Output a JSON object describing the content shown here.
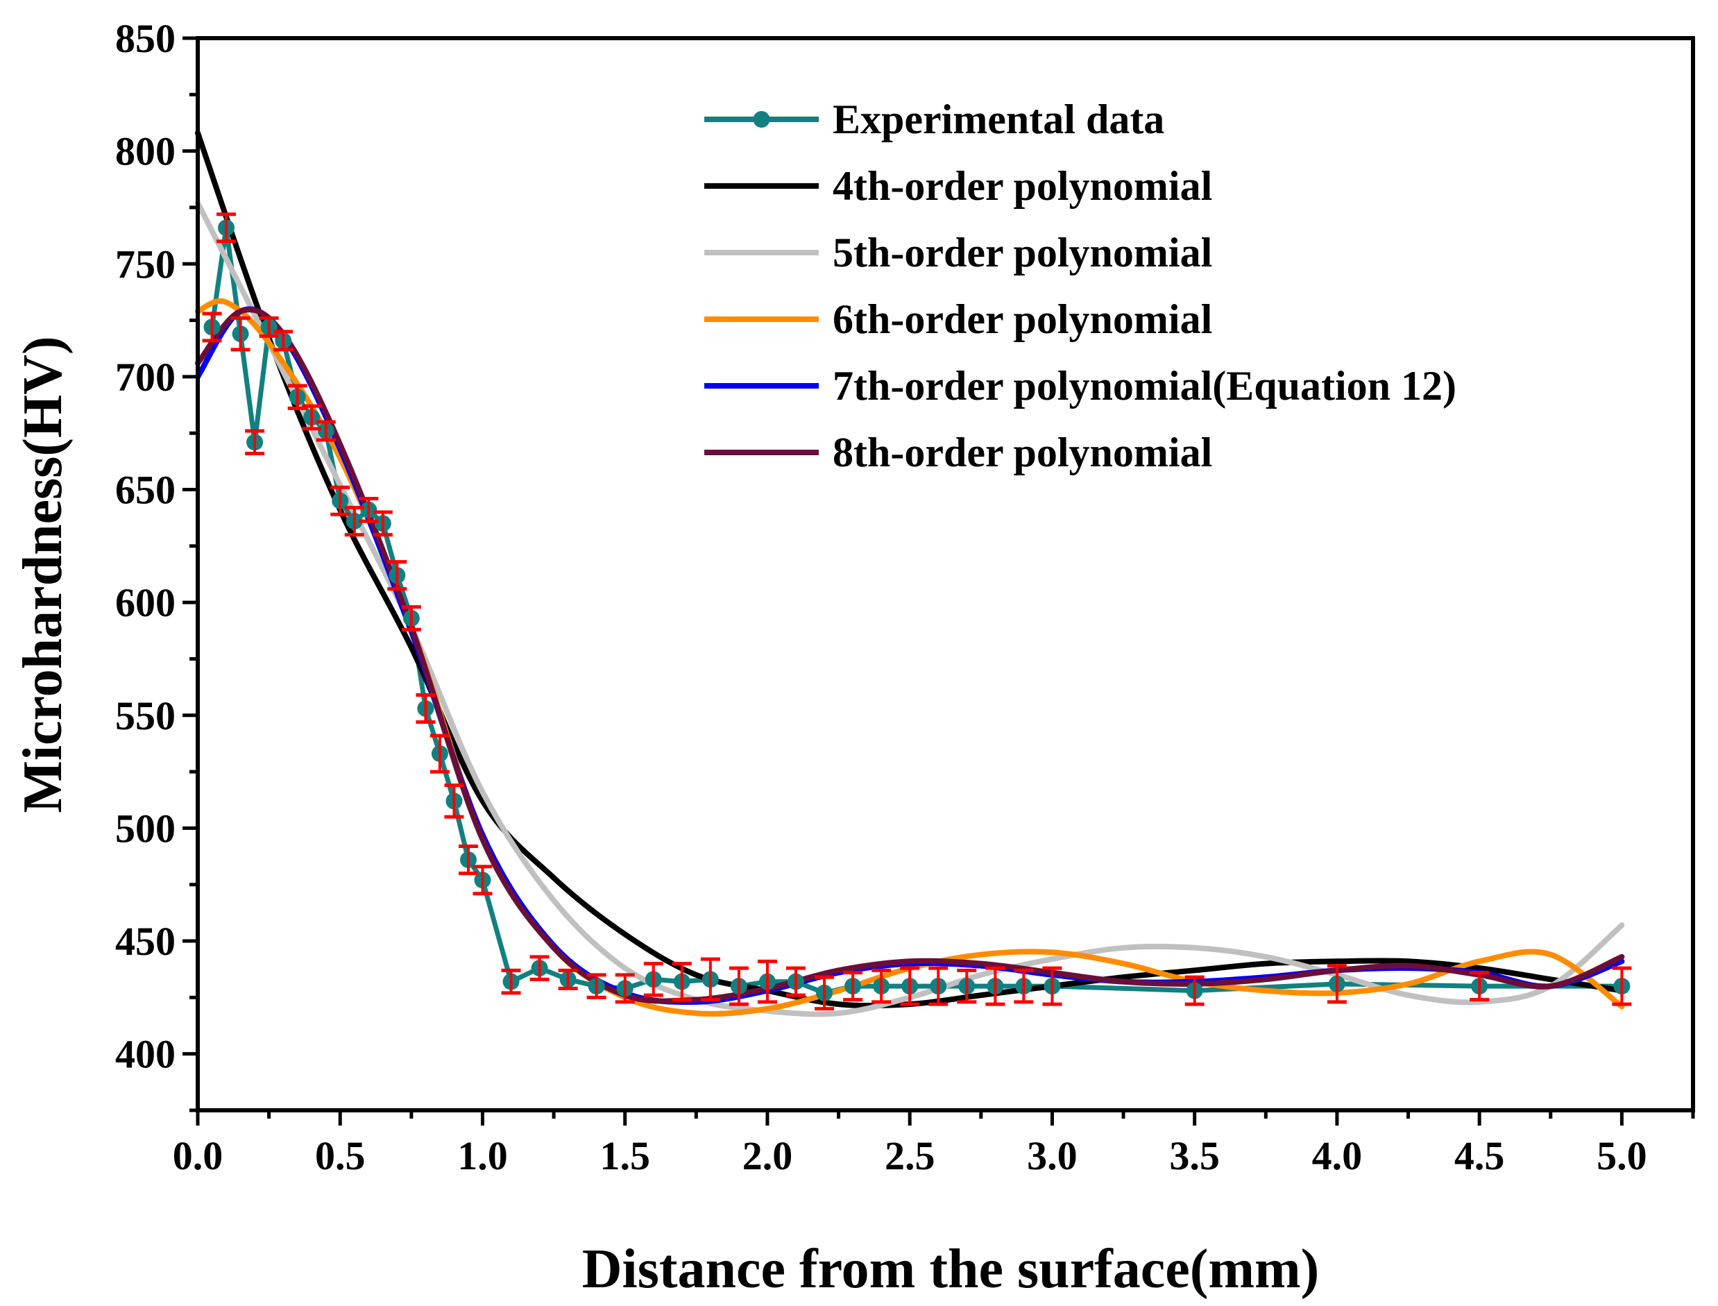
{
  "chart_data": {
    "type": "line",
    "title": "",
    "xlabel": "Distance from the surface(mm)",
    "ylabel": "Microhardness(HV)",
    "xlim": [
      0,
      5.25
    ],
    "ylim": [
      375,
      850
    ],
    "xticks": [
      0.0,
      0.5,
      1.0,
      1.5,
      2.0,
      2.5,
      3.0,
      3.5,
      4.0,
      4.5,
      5.0
    ],
    "xtick_labels": [
      "0.0",
      "0.5",
      "1.0",
      "1.5",
      "2.0",
      "2.5",
      "3.0",
      "3.5",
      "4.0",
      "4.5",
      "5.0"
    ],
    "yticks": [
      400,
      450,
      500,
      550,
      600,
      650,
      700,
      750,
      800,
      850
    ],
    "ytick_labels": [
      "400",
      "450",
      "500",
      "550",
      "600",
      "650",
      "700",
      "750",
      "800",
      "850"
    ],
    "grid": false,
    "legend_position": "top-right",
    "experimental": {
      "name": "Experimental data",
      "color": "#128080",
      "errorbar_color": "#ff0000",
      "x": [
        0.05,
        0.1,
        0.15,
        0.2,
        0.25,
        0.3,
        0.35,
        0.4,
        0.45,
        0.5,
        0.55,
        0.6,
        0.65,
        0.7,
        0.75,
        0.8,
        0.85,
        0.9,
        0.95,
        1.0,
        1.1,
        1.2,
        1.3,
        1.4,
        1.5,
        1.6,
        1.7,
        1.8,
        1.9,
        2.0,
        2.1,
        2.2,
        2.3,
        2.4,
        2.5,
        2.6,
        2.7,
        2.8,
        2.9,
        3.0,
        3.5,
        4.0,
        4.5,
        5.0
      ],
      "y": [
        722,
        766,
        719,
        671,
        722,
        716,
        691,
        682,
        676,
        645,
        636,
        641,
        635,
        612,
        593,
        553,
        533,
        512,
        486,
        477,
        432,
        438,
        433,
        430,
        429,
        433,
        432,
        433,
        430,
        432,
        432,
        427,
        430,
        430,
        430,
        430,
        430,
        430,
        430,
        430,
        428,
        431,
        430,
        430
      ],
      "err": [
        6,
        6,
        7,
        5,
        4,
        4,
        5,
        5,
        4,
        6,
        6,
        5,
        5,
        6,
        5,
        6,
        8,
        7,
        6,
        6,
        5,
        5,
        4,
        5,
        6,
        7,
        8,
        9,
        8,
        9,
        6,
        7,
        6,
        7,
        8,
        8,
        7,
        8,
        7,
        8,
        6,
        8,
        6,
        8
      ]
    },
    "series": [
      {
        "name": "4th-order polynomial",
        "color": "#000000",
        "x": [
          0,
          0.25,
          0.5,
          0.75,
          1.0,
          1.25,
          1.5,
          1.75,
          2.0,
          2.25,
          2.5,
          2.75,
          3.0,
          3.25,
          3.5,
          3.75,
          4.0,
          4.25,
          4.5,
          4.75,
          5.0
        ],
        "y": [
          808,
          717,
          641,
          580,
          512,
          478,
          453,
          435,
          428,
          422,
          422,
          426,
          430,
          434,
          437,
          440,
          441,
          441,
          438,
          433,
          428
        ]
      },
      {
        "name": "5th-order polynomial",
        "color": "#c0c0c0",
        "x": [
          0,
          0.25,
          0.5,
          0.75,
          1.0,
          1.25,
          1.5,
          1.75,
          2.0,
          2.25,
          2.5,
          2.75,
          3.0,
          3.25,
          3.5,
          3.75,
          4.0,
          4.25,
          4.5,
          4.75,
          5.0
        ],
        "y": [
          777,
          715,
          652,
          589,
          516,
          468,
          438,
          424,
          419,
          418,
          425,
          435,
          442,
          447,
          447,
          443,
          435,
          426,
          423,
          430,
          457
        ]
      },
      {
        "name": "6th-order polynomial",
        "color": "#ff8c00",
        "x": [
          0,
          0.1,
          0.25,
          0.5,
          0.75,
          1.0,
          1.25,
          1.5,
          1.75,
          2.0,
          2.25,
          2.5,
          2.75,
          3.0,
          3.25,
          3.5,
          3.75,
          4.0,
          4.25,
          4.5,
          4.75,
          5.0
        ],
        "y": [
          729,
          733,
          715,
          664,
          589,
          497,
          447,
          425,
          418,
          420,
          428,
          438,
          444,
          445,
          440,
          432,
          428,
          427,
          431,
          441,
          444,
          421
        ]
      },
      {
        "name": "7th-order polynomial(Equation 12)",
        "color": "#0000ff",
        "x": [
          0,
          0.15,
          0.3,
          0.5,
          0.75,
          1.0,
          1.25,
          1.5,
          1.75,
          2.0,
          2.25,
          2.5,
          2.75,
          3.0,
          3.25,
          3.5,
          3.75,
          4.0,
          4.25,
          4.5,
          4.75,
          5.0
        ],
        "y": [
          700,
          729,
          718,
          668,
          587,
          497,
          448,
          427,
          423,
          428,
          436,
          440,
          439,
          435,
          432,
          432,
          434,
          437,
          438,
          436,
          430,
          441
        ]
      },
      {
        "name": "8th-order polynomial",
        "color": "#6b0f3a",
        "x": [
          0,
          0.15,
          0.3,
          0.5,
          0.75,
          1.0,
          1.25,
          1.5,
          1.75,
          2.0,
          2.25,
          2.5,
          2.75,
          3.0,
          3.25,
          3.5,
          3.75,
          4.0,
          4.25,
          4.5,
          4.75,
          5.0
        ],
        "y": [
          706,
          729,
          719,
          670,
          589,
          495,
          447,
          426,
          424,
          429,
          437,
          441,
          440,
          436,
          432,
          431,
          433,
          437,
          439,
          435,
          430,
          443
        ]
      }
    ]
  }
}
